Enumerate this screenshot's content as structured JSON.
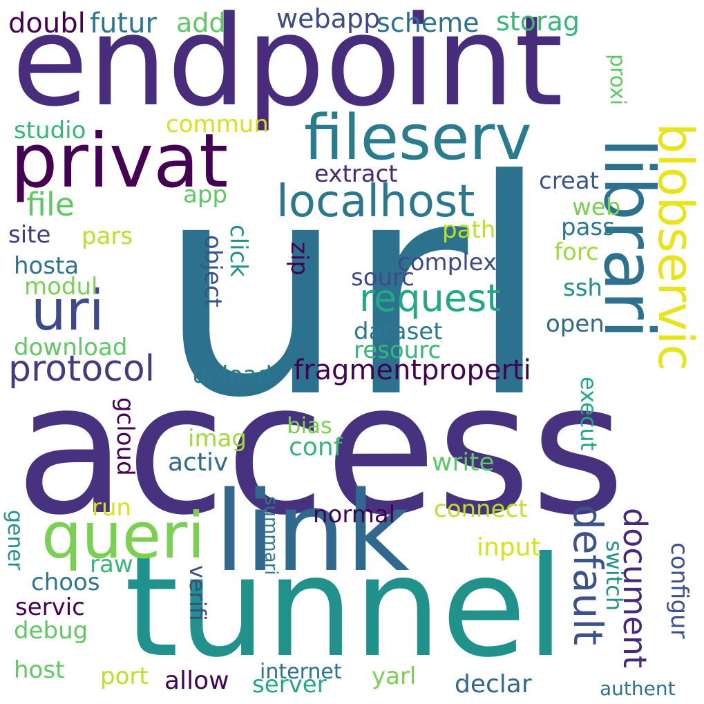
{
  "words": [
    {
      "id": "url",
      "text": "url",
      "color": "#2c728e"
    },
    {
      "id": "access",
      "text": "access",
      "color": "#46327e"
    },
    {
      "id": "endpoint",
      "text": "endpoint",
      "color": "#472d7b"
    },
    {
      "id": "tunnel",
      "text": "tunnel",
      "color": "#21918c"
    },
    {
      "id": "link",
      "text": "link",
      "color": "#31688e"
    },
    {
      "id": "privat",
      "text": "privat",
      "color": "#440154"
    },
    {
      "id": "fileserv",
      "text": "fileserv",
      "color": "#287c8e"
    },
    {
      "id": "librari",
      "text": "librari",
      "color": "#2c728e"
    },
    {
      "id": "blobservic",
      "text": "blobservic",
      "color": "#e7e419"
    },
    {
      "id": "queri",
      "text": "queri",
      "color": "#7ad151"
    },
    {
      "id": "uri",
      "text": "uri",
      "color": "#3e4989"
    },
    {
      "id": "localhost",
      "text": "localhost",
      "color": "#2a788e"
    },
    {
      "id": "request",
      "text": "request",
      "color": "#22a884"
    },
    {
      "id": "protocol",
      "text": "protocol",
      "color": "#443983"
    },
    {
      "id": "default",
      "text": "default",
      "color": "#3b528b"
    },
    {
      "id": "document",
      "text": "document",
      "color": "#482878"
    },
    {
      "id": "file",
      "text": "file",
      "color": "#5ec962"
    },
    {
      "id": "fragmentproperti",
      "text": "fragmentproperti",
      "color": "#440154"
    },
    {
      "id": "doubl",
      "text": "doubl",
      "color": "#440154"
    },
    {
      "id": "futur",
      "text": "futur",
      "color": "#2a788e"
    },
    {
      "id": "add",
      "text": "add",
      "color": "#5ec962"
    },
    {
      "id": "webapp",
      "text": "webapp",
      "color": "#3e4989"
    },
    {
      "id": "scheme",
      "text": "scheme",
      "color": "#2c728e"
    },
    {
      "id": "storag",
      "text": "storag",
      "color": "#35b779"
    },
    {
      "id": "studio",
      "text": "studio",
      "color": "#35b779"
    },
    {
      "id": "commun",
      "text": "commun",
      "color": "#d8e219"
    },
    {
      "id": "proxi",
      "text": "proxi",
      "color": "#5ec962"
    },
    {
      "id": "extract",
      "text": "extract",
      "color": "#482878"
    },
    {
      "id": "creat",
      "text": "creat",
      "color": "#3b528b"
    },
    {
      "id": "app",
      "text": "app",
      "color": "#5ec962"
    },
    {
      "id": "web",
      "text": "web",
      "color": "#7ad151"
    },
    {
      "id": "pass",
      "text": "pass",
      "color": "#2a788e"
    },
    {
      "id": "site",
      "text": "site",
      "color": "#443983"
    },
    {
      "id": "pars",
      "text": "pars",
      "color": "#bddf26"
    },
    {
      "id": "path",
      "text": "path",
      "color": "#bddf26"
    },
    {
      "id": "click",
      "text": "click",
      "color": "#21918c"
    },
    {
      "id": "object",
      "text": "object",
      "color": "#3b528b"
    },
    {
      "id": "zip",
      "text": "zip",
      "color": "#440154"
    },
    {
      "id": "complex",
      "text": "complex",
      "color": "#3e4989"
    },
    {
      "id": "forc",
      "text": "forc",
      "color": "#a0da39"
    },
    {
      "id": "hosta",
      "text": "hosta",
      "color": "#2c728e"
    },
    {
      "id": "modul",
      "text": "modul",
      "color": "#7ad151"
    },
    {
      "id": "sourc",
      "text": "sourc",
      "color": "#3e4989"
    },
    {
      "id": "ssh",
      "text": "ssh",
      "color": "#21918c"
    },
    {
      "id": "download",
      "text": "download",
      "color": "#5ec962"
    },
    {
      "id": "dataset",
      "text": "dataset",
      "color": "#2a788e"
    },
    {
      "id": "resourc",
      "text": "resourc",
      "color": "#35b779"
    },
    {
      "id": "open",
      "text": "open",
      "color": "#31688e"
    },
    {
      "id": "upload",
      "text": "upload",
      "color": "#2a788e"
    },
    {
      "id": "imag",
      "text": "imag",
      "color": "#a0da39"
    },
    {
      "id": "bias",
      "text": "bias",
      "color": "#7ad151"
    },
    {
      "id": "conf",
      "text": "conf",
      "color": "#35b779"
    },
    {
      "id": "gcloud",
      "text": "gcloud",
      "color": "#440154"
    },
    {
      "id": "execut",
      "text": "execut",
      "color": "#22a884"
    },
    {
      "id": "activ",
      "text": "activ",
      "color": "#31688e"
    },
    {
      "id": "write",
      "text": "write",
      "color": "#5ec962"
    },
    {
      "id": "run",
      "text": "run",
      "color": "#d8e219"
    },
    {
      "id": "normal",
      "text": "normal",
      "color": "#440154"
    },
    {
      "id": "connect",
      "text": "connect",
      "color": "#bddf26"
    },
    {
      "id": "gener",
      "text": "gener",
      "color": "#21918c"
    },
    {
      "id": "summari",
      "text": "summari",
      "color": "#2a788e"
    },
    {
      "id": "input",
      "text": "input",
      "color": "#d8e219"
    },
    {
      "id": "raw",
      "text": "raw",
      "color": "#35b779"
    },
    {
      "id": "switch",
      "text": "switch",
      "color": "#21918c"
    },
    {
      "id": "configur",
      "text": "configur",
      "color": "#3b528b"
    },
    {
      "id": "choos",
      "text": "choos",
      "color": "#2a788e"
    },
    {
      "id": "servic",
      "text": "servic",
      "color": "#440154"
    },
    {
      "id": "verifi",
      "text": "verifi",
      "color": "#3e4989"
    },
    {
      "id": "debug",
      "text": "debug",
      "color": "#5ec962"
    },
    {
      "id": "host",
      "text": "host",
      "color": "#5ec962"
    },
    {
      "id": "port",
      "text": "port",
      "color": "#bddf26"
    },
    {
      "id": "allow",
      "text": "allow",
      "color": "#440154"
    },
    {
      "id": "internet",
      "text": "internet",
      "color": "#2c728e"
    },
    {
      "id": "server",
      "text": "server",
      "color": "#22a884"
    },
    {
      "id": "yarl",
      "text": "yarl",
      "color": "#7ad151"
    },
    {
      "id": "declar",
      "text": "declar",
      "color": "#31688e"
    },
    {
      "id": "authent",
      "text": "authent",
      "color": "#2c728e"
    }
  ]
}
